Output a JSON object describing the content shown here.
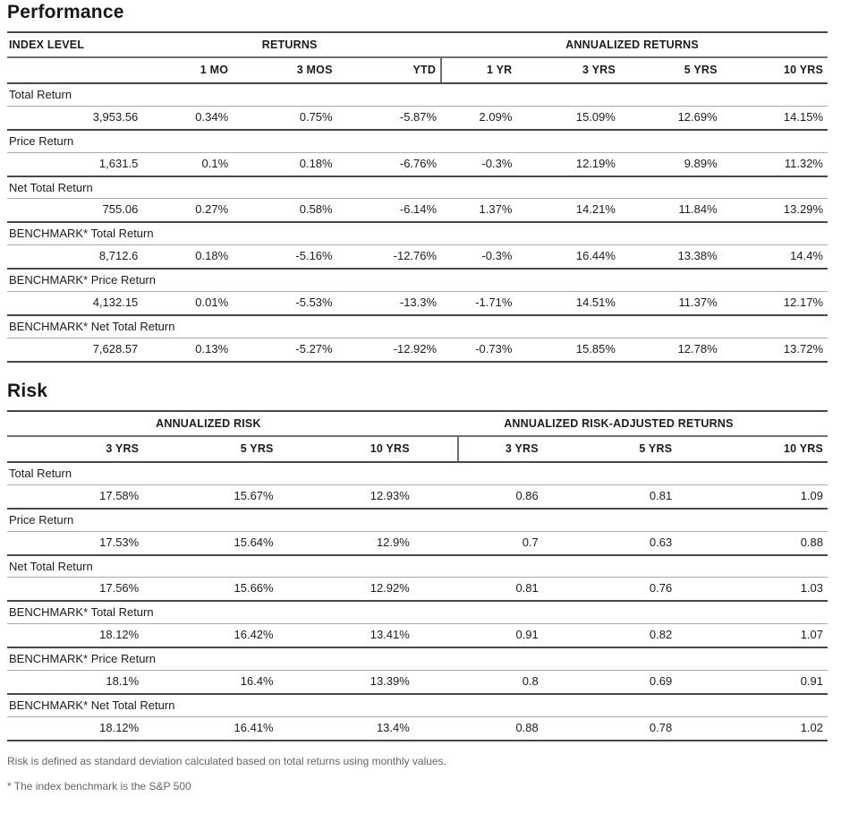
{
  "performance": {
    "title": "Performance",
    "col_groups": {
      "index_level": "INDEX LEVEL",
      "returns": "RETURNS",
      "annualized": "ANNUALIZED RETURNS"
    },
    "columns": [
      "1 MO",
      "3 MOS",
      "YTD",
      "1 YR",
      "3 YRS",
      "5 YRS",
      "10 YRS"
    ],
    "rows": [
      {
        "label": "Total Return",
        "index_level": "3,953.56",
        "values": [
          "0.34%",
          "0.75%",
          "-5.87%",
          "2.09%",
          "15.09%",
          "12.69%",
          "14.15%"
        ]
      },
      {
        "label": "Price Return",
        "index_level": "1,631.5",
        "values": [
          "0.1%",
          "0.18%",
          "-6.76%",
          "-0.3%",
          "12.19%",
          "9.89%",
          "11.32%"
        ]
      },
      {
        "label": "Net Total Return",
        "index_level": "755.06",
        "values": [
          "0.27%",
          "0.58%",
          "-6.14%",
          "1.37%",
          "14.21%",
          "11.84%",
          "13.29%"
        ]
      },
      {
        "label": "BENCHMARK* Total Return",
        "index_level": "8,712.6",
        "values": [
          "0.18%",
          "-5.16%",
          "-12.76%",
          "-0.3%",
          "16.44%",
          "13.38%",
          "14.4%"
        ]
      },
      {
        "label": "BENCHMARK* Price Return",
        "index_level": "4,132.15",
        "values": [
          "0.01%",
          "-5.53%",
          "-13.3%",
          "-1.71%",
          "14.51%",
          "11.37%",
          "12.17%"
        ]
      },
      {
        "label": "BENCHMARK* Net Total Return",
        "index_level": "7,628.57",
        "values": [
          "0.13%",
          "-5.27%",
          "-12.92%",
          "-0.73%",
          "15.85%",
          "12.78%",
          "13.72%"
        ]
      }
    ]
  },
  "risk": {
    "title": "Risk",
    "col_groups": {
      "annualized_risk": "ANNUALIZED RISK",
      "risk_adjusted": "ANNUALIZED RISK-ADJUSTED RETURNS"
    },
    "columns": [
      "3 YRS",
      "5 YRS",
      "10 YRS",
      "3 YRS",
      "5 YRS",
      "10 YRS"
    ],
    "rows": [
      {
        "label": "Total Return",
        "values": [
          "17.58%",
          "15.67%",
          "12.93%",
          "0.86",
          "0.81",
          "1.09"
        ]
      },
      {
        "label": "Price Return",
        "values": [
          "17.53%",
          "15.64%",
          "12.9%",
          "0.7",
          "0.63",
          "0.88"
        ]
      },
      {
        "label": "Net Total Return",
        "values": [
          "17.56%",
          "15.66%",
          "12.92%",
          "0.81",
          "0.76",
          "1.03"
        ]
      },
      {
        "label": "BENCHMARK* Total Return",
        "values": [
          "18.12%",
          "16.42%",
          "13.41%",
          "0.91",
          "0.82",
          "1.07"
        ]
      },
      {
        "label": "BENCHMARK* Price Return",
        "values": [
          "18.1%",
          "16.4%",
          "13.39%",
          "0.8",
          "0.69",
          "0.91"
        ]
      },
      {
        "label": "BENCHMARK* Net Total Return",
        "values": [
          "18.12%",
          "16.41%",
          "13.4%",
          "0.88",
          "0.78",
          "1.02"
        ]
      }
    ]
  },
  "footnotes": {
    "risk_definition": "Risk is defined as standard deviation calculated based on total returns using monthly values.",
    "benchmark": "* The index benchmark is the  S&P 500"
  },
  "colors": {
    "text": "#1c1c1e",
    "heavy_rule": "#48484a",
    "medium_rule": "#6e6f72",
    "light_rule": "#a9aaac",
    "footnote_text": "#63666a",
    "background": "#ffffff"
  }
}
